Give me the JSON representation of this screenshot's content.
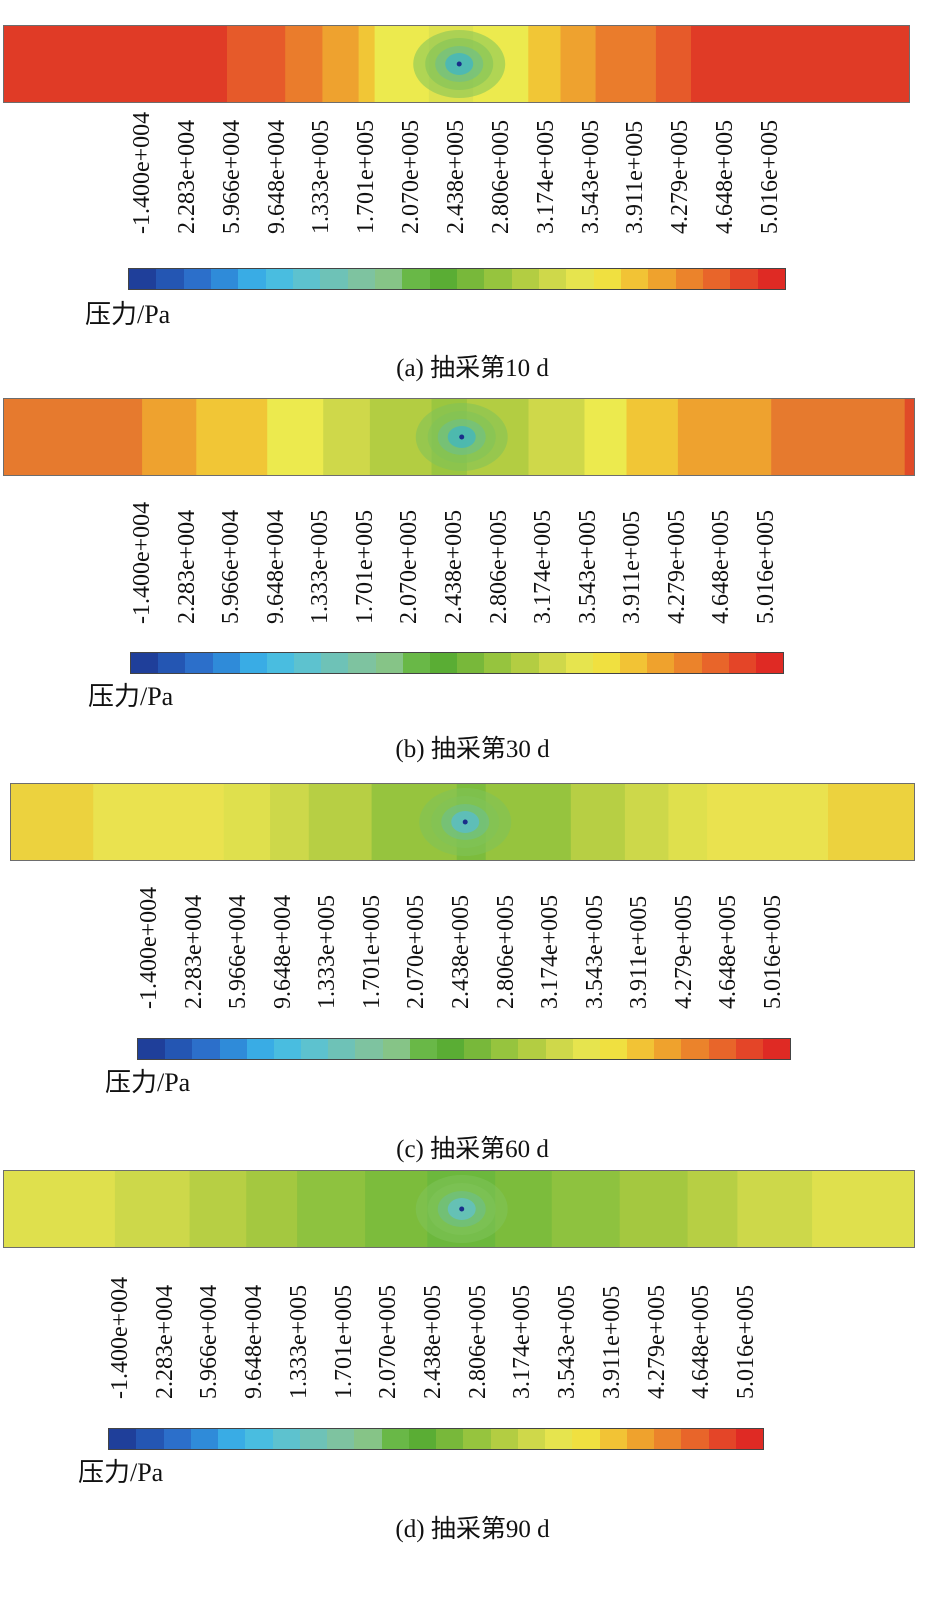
{
  "legend": {
    "unit_label": "压力/Pa",
    "tick_labels": [
      "-1.400e+004",
      "2.283e+004",
      "5.966e+004",
      "9.648e+004",
      "1.333e+005",
      "1.701e+005",
      "2.070e+005",
      "2.438e+005",
      "2.806e+005",
      "3.174e+005",
      "3.543e+005",
      "3.911e+005",
      "4.279e+005",
      "4.648e+005",
      "5.016e+005"
    ],
    "tick_values": [
      -14000,
      22830,
      59660,
      96480,
      133300,
      170100,
      207000,
      243800,
      280600,
      317400,
      354300,
      391100,
      427900,
      464800,
      501600
    ],
    "colors": [
      "#1f3f9a",
      "#2456b3",
      "#2c6fca",
      "#2f8bd9",
      "#39ace5",
      "#49bde0",
      "#5dc2cf",
      "#6ec2b7",
      "#7ec3a0",
      "#86c487",
      "#69b847",
      "#5aad34",
      "#78b83a",
      "#96c43e",
      "#b3cd42",
      "#cfd84a",
      "#e6e44e",
      "#f0e040",
      "#f2c335",
      "#efa22d",
      "#eb832b",
      "#e8652a",
      "#e44528",
      "#df2a24"
    ]
  },
  "panels": [
    {
      "caption": "(a) 抽采第10 d",
      "center_color": "#3ab5cc",
      "columns": [
        [
          "#e03b26",
          222
        ],
        [
          "#e65a2a",
          58
        ],
        [
          "#ea7c2c",
          37
        ],
        [
          "#eea22f",
          36
        ],
        [
          "#f1c636",
          16
        ],
        [
          "#ecea4e",
          54
        ],
        [
          "#dfe24f",
          44
        ],
        [
          "#ecea4e",
          55
        ],
        [
          "#f1c636",
          32
        ],
        [
          "#eea22f",
          35
        ],
        [
          "#ea7c2c",
          60
        ],
        [
          "#e65a2a",
          35
        ],
        [
          "#e03b26",
          217
        ]
      ]
    },
    {
      "caption": "(b) 抽采第30 d",
      "center_color": "#3cb5c6",
      "columns": [
        [
          "#e67a2e",
          148
        ],
        [
          "#eea22f",
          58
        ],
        [
          "#f1c636",
          76
        ],
        [
          "#ecea4e",
          60
        ],
        [
          "#cfd84a",
          50
        ],
        [
          "#b3cd42",
          66
        ],
        [
          "#9bc63f",
          38
        ],
        [
          "#b3cd42",
          66
        ],
        [
          "#cfd84a",
          60
        ],
        [
          "#ecea4e",
          45
        ],
        [
          "#f1c636",
          55
        ],
        [
          "#eea22f",
          100
        ],
        [
          "#e67a2e",
          143
        ],
        [
          "#e04a28",
          10
        ]
      ]
    },
    {
      "caption": "(c) 抽采第60 d",
      "center_color": "#56bcd4",
      "columns": [
        [
          "#ecd23e",
          85
        ],
        [
          "#eae24f",
          135
        ],
        [
          "#dfe04d",
          48
        ],
        [
          "#cdd84a",
          40
        ],
        [
          "#b7cf44",
          65
        ],
        [
          "#96c43e",
          88
        ],
        [
          "#7cbc3c",
          30
        ],
        [
          "#96c43e",
          88
        ],
        [
          "#b7cf44",
          56
        ],
        [
          "#cdd84a",
          45
        ],
        [
          "#dfe04d",
          40
        ],
        [
          "#eae24f",
          125
        ],
        [
          "#ecd23e",
          89
        ]
      ]
    },
    {
      "caption": "(d) 抽采第90 d",
      "center_color": "#5fc2d0",
      "columns": [
        [
          "#dfe04d",
          98
        ],
        [
          "#cdd84a",
          66
        ],
        [
          "#b7cf44",
          50
        ],
        [
          "#a4c840",
          45
        ],
        [
          "#8ec23f",
          60
        ],
        [
          "#7cbc3c",
          55
        ],
        [
          "#6cb83d",
          60
        ],
        [
          "#7cbc3c",
          50
        ],
        [
          "#8ec23f",
          60
        ],
        [
          "#a4c840",
          60
        ],
        [
          "#b7cf44",
          44
        ],
        [
          "#cdd84a",
          66
        ],
        [
          "#dfe04d",
          90
        ]
      ]
    }
  ]
}
